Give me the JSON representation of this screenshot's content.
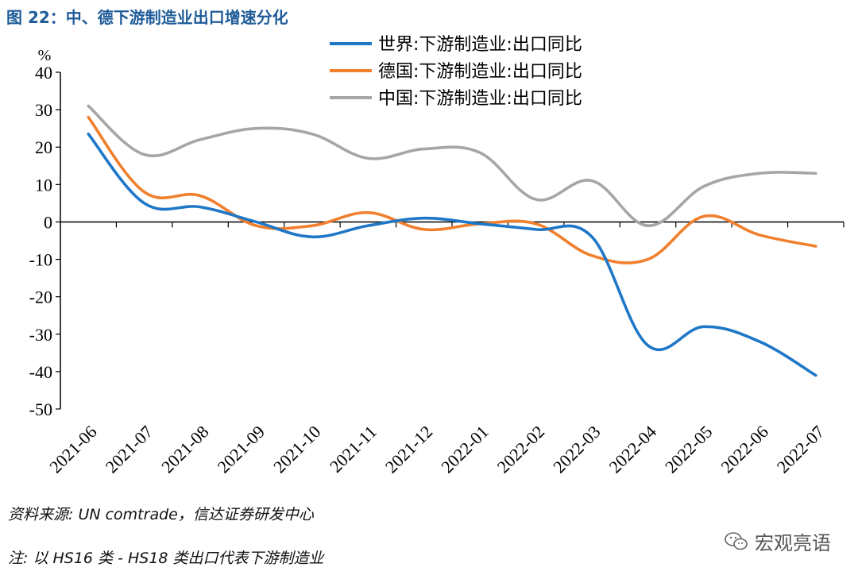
{
  "header": {
    "title": "图 22：中、德下游制造业出口增速分化"
  },
  "chart_data": {
    "type": "line",
    "unit_label": "%",
    "categories": [
      "2021-06",
      "2021-07",
      "2021-08",
      "2021-09",
      "2021-10",
      "2021-11",
      "2021-12",
      "2022-01",
      "2022-02",
      "2022-03",
      "2022-04",
      "2022-05",
      "2022-06",
      "2022-07"
    ],
    "ylim": [
      -50,
      40
    ],
    "yticks": [
      "40",
      "30",
      "20",
      "10",
      "0",
      "-10",
      "-20",
      "-30",
      "-40",
      "-50"
    ],
    "legend_position": "top-right",
    "series": [
      {
        "name": "世界:下游制造业:出口同比",
        "color": "#1f77c8",
        "values": [
          23.5,
          5,
          4,
          0,
          -4,
          -1,
          1,
          -0.5,
          -2,
          -4,
          -33,
          -28,
          -32,
          -41
        ]
      },
      {
        "name": "德国:下游制造业:出口同比",
        "color": "#f07f2e",
        "values": [
          28,
          8,
          7,
          -1,
          -1,
          2.5,
          -2,
          -0.5,
          -0.5,
          -9,
          -10,
          1.5,
          -3.5,
          -6.5
        ]
      },
      {
        "name": "中国:下游制造业:出口同比",
        "color": "#a6a6a6",
        "values": [
          31,
          18,
          22,
          25,
          23.5,
          17,
          19.5,
          18.5,
          6,
          11,
          -1,
          9.5,
          13,
          13
        ]
      }
    ]
  },
  "footer": {
    "source": "资料来源: UN comtrade，信达证券研发中心",
    "note": "注: 以 HS16 类 - HS18 类出口代表下游制造业"
  },
  "watermark": {
    "text": "宏观亮语",
    "icon": "wechat-icon"
  }
}
